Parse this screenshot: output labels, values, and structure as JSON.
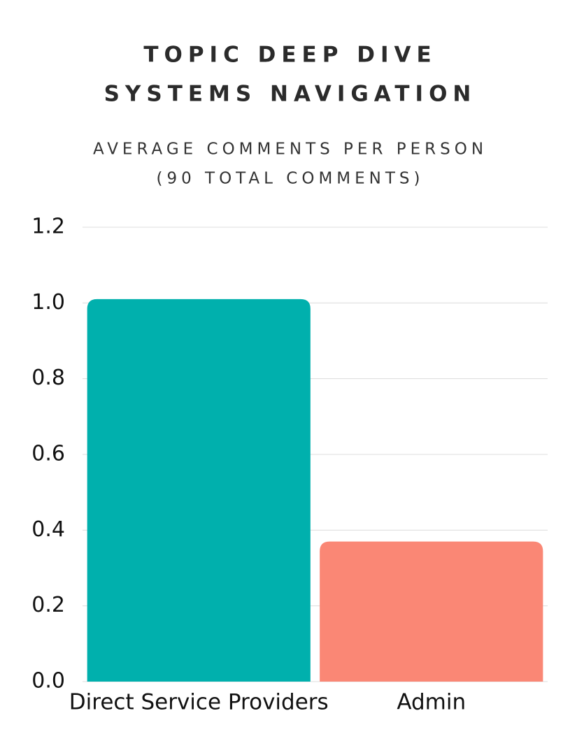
{
  "chart_data": {
    "type": "bar",
    "title": [
      "TOPIC DEEP DIVE",
      "SYSTEMS NAVIGATION"
    ],
    "subtitle": [
      "AVERAGE COMMENTS PER PERSON",
      "(90 TOTAL COMMENTS)"
    ],
    "categories": [
      "Direct Service Providers",
      "Admin"
    ],
    "values": [
      1.01,
      0.37
    ],
    "colors": [
      "#00b0ad",
      "#fa8775"
    ],
    "ylim": [
      0,
      1.2
    ],
    "yticks": [
      {
        "value": 0,
        "label": "0.0"
      },
      0.2,
      0.4,
      0.6,
      0.8,
      {
        "value": 1,
        "label": "1.0"
      },
      1.2
    ],
    "grid": true
  }
}
